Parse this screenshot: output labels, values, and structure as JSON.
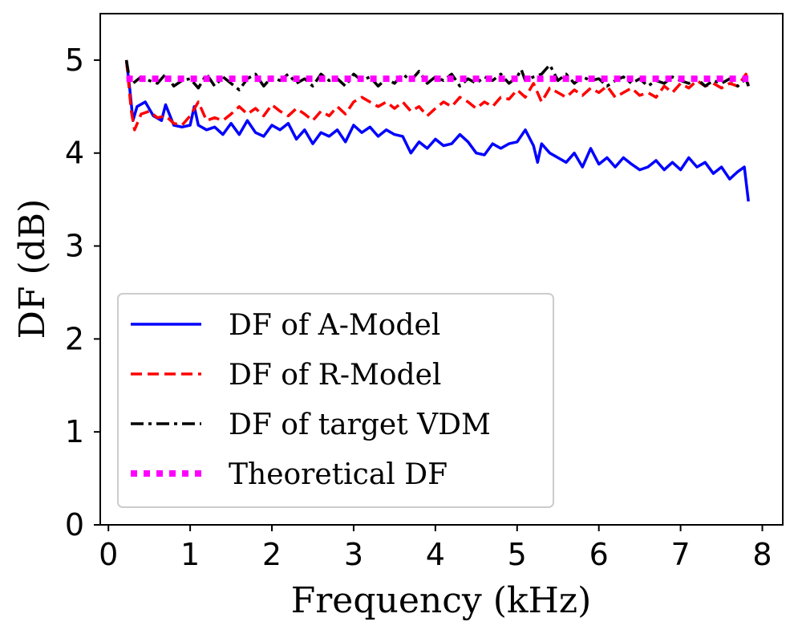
{
  "chart_data": {
    "type": "line",
    "title": "",
    "xlabel": "Frequency (kHz)",
    "ylabel": "DF (dB)",
    "xlim": [
      -0.1,
      8.25
    ],
    "ylim": [
      0,
      5.5
    ],
    "xticks": [
      0,
      1,
      2,
      3,
      4,
      5,
      6,
      7,
      8
    ],
    "yticks": [
      0,
      1,
      2,
      3,
      4,
      5
    ],
    "grid": false,
    "legend_position": "lower-left",
    "series": [
      {
        "name": "DF of A-Model",
        "color": "#0000ff",
        "style": "solid",
        "points": [
          [
            0.22,
            5.0
          ],
          [
            0.26,
            4.7
          ],
          [
            0.3,
            4.35
          ],
          [
            0.35,
            4.5
          ],
          [
            0.45,
            4.55
          ],
          [
            0.55,
            4.4
          ],
          [
            0.65,
            4.35
          ],
          [
            0.7,
            4.52
          ],
          [
            0.8,
            4.3
          ],
          [
            0.9,
            4.28
          ],
          [
            1.0,
            4.3
          ],
          [
            1.05,
            4.5
          ],
          [
            1.1,
            4.3
          ],
          [
            1.2,
            4.25
          ],
          [
            1.3,
            4.28
          ],
          [
            1.4,
            4.2
          ],
          [
            1.5,
            4.32
          ],
          [
            1.6,
            4.2
          ],
          [
            1.7,
            4.35
          ],
          [
            1.8,
            4.22
          ],
          [
            1.9,
            4.18
          ],
          [
            2.0,
            4.3
          ],
          [
            2.1,
            4.25
          ],
          [
            2.2,
            4.32
          ],
          [
            2.3,
            4.15
          ],
          [
            2.4,
            4.25
          ],
          [
            2.5,
            4.1
          ],
          [
            2.6,
            4.22
          ],
          [
            2.7,
            4.18
          ],
          [
            2.8,
            4.25
          ],
          [
            2.9,
            4.12
          ],
          [
            3.0,
            4.3
          ],
          [
            3.1,
            4.22
          ],
          [
            3.2,
            4.28
          ],
          [
            3.3,
            4.18
          ],
          [
            3.4,
            4.25
          ],
          [
            3.5,
            4.2
          ],
          [
            3.6,
            4.18
          ],
          [
            3.7,
            4.0
          ],
          [
            3.8,
            4.12
          ],
          [
            3.9,
            4.05
          ],
          [
            4.0,
            4.15
          ],
          [
            4.1,
            4.08
          ],
          [
            4.2,
            4.1
          ],
          [
            4.3,
            4.2
          ],
          [
            4.4,
            4.12
          ],
          [
            4.5,
            4.0
          ],
          [
            4.6,
            3.98
          ],
          [
            4.7,
            4.1
          ],
          [
            4.8,
            4.05
          ],
          [
            4.9,
            4.1
          ],
          [
            5.0,
            4.12
          ],
          [
            5.1,
            4.25
          ],
          [
            5.2,
            4.08
          ],
          [
            5.25,
            3.9
          ],
          [
            5.3,
            4.1
          ],
          [
            5.4,
            4.0
          ],
          [
            5.5,
            3.95
          ],
          [
            5.6,
            3.9
          ],
          [
            5.7,
            4.0
          ],
          [
            5.8,
            3.85
          ],
          [
            5.9,
            4.05
          ],
          [
            6.0,
            3.88
          ],
          [
            6.1,
            3.95
          ],
          [
            6.2,
            3.85
          ],
          [
            6.3,
            3.95
          ],
          [
            6.4,
            3.88
          ],
          [
            6.5,
            3.82
          ],
          [
            6.6,
            3.85
          ],
          [
            6.7,
            3.92
          ],
          [
            6.8,
            3.82
          ],
          [
            6.9,
            3.9
          ],
          [
            7.0,
            3.82
          ],
          [
            7.1,
            3.95
          ],
          [
            7.2,
            3.85
          ],
          [
            7.3,
            3.9
          ],
          [
            7.4,
            3.78
          ],
          [
            7.5,
            3.85
          ],
          [
            7.6,
            3.72
          ],
          [
            7.7,
            3.8
          ],
          [
            7.78,
            3.85
          ],
          [
            7.83,
            3.48
          ]
        ]
      },
      {
        "name": "DF of R-Model",
        "color": "#ff0000",
        "style": "dashed",
        "points": [
          [
            0.22,
            5.0
          ],
          [
            0.28,
            4.45
          ],
          [
            0.32,
            4.25
          ],
          [
            0.4,
            4.42
          ],
          [
            0.5,
            4.45
          ],
          [
            0.6,
            4.38
          ],
          [
            0.7,
            4.4
          ],
          [
            0.8,
            4.32
          ],
          [
            0.9,
            4.3
          ],
          [
            1.0,
            4.4
          ],
          [
            1.1,
            4.55
          ],
          [
            1.2,
            4.35
          ],
          [
            1.3,
            4.38
          ],
          [
            1.4,
            4.35
          ],
          [
            1.5,
            4.42
          ],
          [
            1.6,
            4.5
          ],
          [
            1.7,
            4.42
          ],
          [
            1.8,
            4.48
          ],
          [
            1.9,
            4.4
          ],
          [
            2.0,
            4.52
          ],
          [
            2.1,
            4.45
          ],
          [
            2.2,
            4.4
          ],
          [
            2.3,
            4.48
          ],
          [
            2.4,
            4.42
          ],
          [
            2.5,
            4.35
          ],
          [
            2.6,
            4.45
          ],
          [
            2.7,
            4.4
          ],
          [
            2.8,
            4.5
          ],
          [
            2.9,
            4.42
          ],
          [
            3.0,
            4.55
          ],
          [
            3.1,
            4.6
          ],
          [
            3.2,
            4.55
          ],
          [
            3.3,
            4.5
          ],
          [
            3.4,
            4.55
          ],
          [
            3.5,
            4.48
          ],
          [
            3.6,
            4.55
          ],
          [
            3.7,
            4.45
          ],
          [
            3.8,
            4.5
          ],
          [
            3.9,
            4.4
          ],
          [
            4.0,
            4.48
          ],
          [
            4.1,
            4.55
          ],
          [
            4.2,
            4.5
          ],
          [
            4.3,
            4.6
          ],
          [
            4.4,
            4.55
          ],
          [
            4.5,
            4.48
          ],
          [
            4.6,
            4.55
          ],
          [
            4.7,
            4.5
          ],
          [
            4.8,
            4.6
          ],
          [
            4.9,
            4.58
          ],
          [
            5.0,
            4.68
          ],
          [
            5.1,
            4.6
          ],
          [
            5.2,
            4.75
          ],
          [
            5.3,
            4.55
          ],
          [
            5.4,
            4.7
          ],
          [
            5.5,
            4.65
          ],
          [
            5.6,
            4.6
          ],
          [
            5.7,
            4.68
          ],
          [
            5.8,
            4.62
          ],
          [
            5.9,
            4.7
          ],
          [
            6.0,
            4.65
          ],
          [
            6.1,
            4.72
          ],
          [
            6.2,
            4.6
          ],
          [
            6.3,
            4.65
          ],
          [
            6.4,
            4.7
          ],
          [
            6.5,
            4.62
          ],
          [
            6.6,
            4.65
          ],
          [
            6.7,
            4.6
          ],
          [
            6.8,
            4.72
          ],
          [
            6.9,
            4.65
          ],
          [
            7.0,
            4.75
          ],
          [
            7.1,
            4.7
          ],
          [
            7.2,
            4.78
          ],
          [
            7.3,
            4.72
          ],
          [
            7.4,
            4.75
          ],
          [
            7.5,
            4.7
          ],
          [
            7.6,
            4.75
          ],
          [
            7.7,
            4.72
          ],
          [
            7.8,
            4.85
          ],
          [
            7.83,
            4.72
          ]
        ]
      },
      {
        "name": "DF of target VDM",
        "color": "#000000",
        "style": "dashdot",
        "points": [
          [
            0.22,
            5.0
          ],
          [
            0.26,
            4.78
          ],
          [
            0.3,
            4.75
          ],
          [
            0.4,
            4.82
          ],
          [
            0.5,
            4.78
          ],
          [
            0.6,
            4.75
          ],
          [
            0.7,
            4.85
          ],
          [
            0.8,
            4.72
          ],
          [
            0.9,
            4.78
          ],
          [
            1.0,
            4.8
          ],
          [
            1.1,
            4.7
          ],
          [
            1.2,
            4.85
          ],
          [
            1.3,
            4.72
          ],
          [
            1.4,
            4.82
          ],
          [
            1.5,
            4.75
          ],
          [
            1.6,
            4.68
          ],
          [
            1.7,
            4.8
          ],
          [
            1.8,
            4.85
          ],
          [
            1.9,
            4.72
          ],
          [
            2.0,
            4.82
          ],
          [
            2.1,
            4.78
          ],
          [
            2.2,
            4.85
          ],
          [
            2.3,
            4.75
          ],
          [
            2.4,
            4.8
          ],
          [
            2.5,
            4.72
          ],
          [
            2.6,
            4.85
          ],
          [
            2.7,
            4.78
          ],
          [
            2.8,
            4.8
          ],
          [
            2.9,
            4.72
          ],
          [
            3.0,
            4.85
          ],
          [
            3.1,
            4.78
          ],
          [
            3.2,
            4.82
          ],
          [
            3.3,
            4.72
          ],
          [
            3.4,
            4.8
          ],
          [
            3.5,
            4.75
          ],
          [
            3.6,
            4.85
          ],
          [
            3.7,
            4.78
          ],
          [
            3.8,
            4.88
          ],
          [
            3.9,
            4.75
          ],
          [
            4.0,
            4.82
          ],
          [
            4.1,
            4.78
          ],
          [
            4.2,
            4.85
          ],
          [
            4.3,
            4.72
          ],
          [
            4.4,
            4.8
          ],
          [
            4.5,
            4.75
          ],
          [
            4.6,
            4.82
          ],
          [
            4.7,
            4.78
          ],
          [
            4.8,
            4.85
          ],
          [
            4.9,
            4.75
          ],
          [
            5.0,
            4.82
          ],
          [
            5.05,
            4.9
          ],
          [
            5.1,
            4.78
          ],
          [
            5.2,
            4.82
          ],
          [
            5.3,
            4.85
          ],
          [
            5.4,
            4.95
          ],
          [
            5.5,
            4.78
          ],
          [
            5.6,
            4.85
          ],
          [
            5.7,
            4.75
          ],
          [
            5.8,
            4.82
          ],
          [
            5.9,
            4.78
          ],
          [
            6.0,
            4.8
          ],
          [
            6.1,
            4.72
          ],
          [
            6.2,
            4.78
          ],
          [
            6.3,
            4.82
          ],
          [
            6.4,
            4.75
          ],
          [
            6.5,
            4.8
          ],
          [
            6.6,
            4.72
          ],
          [
            6.7,
            4.78
          ],
          [
            6.8,
            4.75
          ],
          [
            6.9,
            4.82
          ],
          [
            7.0,
            4.78
          ],
          [
            7.1,
            4.75
          ],
          [
            7.2,
            4.8
          ],
          [
            7.3,
            4.72
          ],
          [
            7.4,
            4.78
          ],
          [
            7.5,
            4.75
          ],
          [
            7.6,
            4.8
          ],
          [
            7.7,
            4.72
          ],
          [
            7.8,
            4.8
          ],
          [
            7.83,
            4.72
          ]
        ]
      },
      {
        "name": "Theoretical DF",
        "color": "#ff00ff",
        "style": "dotted",
        "points": [
          [
            0.22,
            4.8
          ],
          [
            7.83,
            4.8
          ]
        ]
      }
    ]
  }
}
